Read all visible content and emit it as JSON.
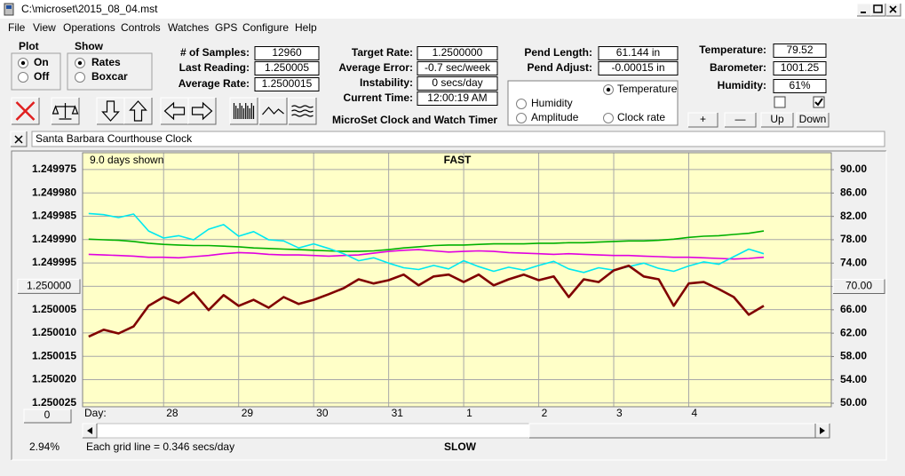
{
  "window": {
    "title": "C:\\microset\\2015_08_04.mst"
  },
  "menu": [
    "File",
    "View",
    "Operations",
    "Controls",
    "Watches",
    "GPS",
    "Configure",
    "Help"
  ],
  "plot_group": {
    "title": "Plot",
    "options": [
      "On",
      "Off"
    ],
    "selected": 0
  },
  "show_group": {
    "title": "Show",
    "options": [
      "Rates",
      "Boxcar"
    ],
    "selected": 0
  },
  "readouts": [
    {
      "label": "# of Samples:",
      "value": "12960"
    },
    {
      "label": "Last Reading:",
      "value": "1.250005"
    },
    {
      "label": "Average Rate:",
      "value": "1.2500015"
    },
    {
      "label": "Target Rate:",
      "value": "1.2500000"
    },
    {
      "label": "Average Error:",
      "value": "-0.7 sec/week"
    },
    {
      "label": "Instability:",
      "value": "0 secs/day"
    },
    {
      "label": "Current Time:",
      "value": "12:00:19 AM"
    },
    {
      "label": "Pend Length:",
      "value": "61.144 in"
    },
    {
      "label": "Pend Adjust:",
      "value": "-0.00015 in"
    },
    {
      "label": "Temperature:",
      "value": "79.52"
    },
    {
      "label": "Barometer:",
      "value": "1001.25"
    },
    {
      "label": "Humidity:",
      "value": "61%"
    }
  ],
  "app_title": "MicroSet Clock and Watch Timer",
  "sensor_select": {
    "options": [
      {
        "label": "Temperature",
        "color": "#00a000"
      },
      {
        "label": "Humidity",
        "color": "#d000d0"
      },
      {
        "label": "Amplitude",
        "color": "#00c8d8"
      },
      {
        "label": "Clock rate",
        "color": "#000000"
      }
    ],
    "selected": 0
  },
  "checkboxes": [
    false,
    true
  ],
  "buttons": [
    "+",
    "—",
    "Up",
    "Down"
  ],
  "description": "Santa Barbara Courthouse Clock",
  "chart_data": {
    "type": "line",
    "subtitle": "9.0 days shown",
    "top_label": "FAST",
    "bottom_label": "SLOW",
    "x_label": "Day:",
    "note": "Each grid line = 0.346 secs/day",
    "scale_percent": "2.94%",
    "offset_button": "0",
    "grid": true,
    "xlim": [
      -1.08,
      8.9
    ],
    "xticks": [
      {
        "value": 0,
        "label": "28"
      },
      {
        "value": 1,
        "label": "29"
      },
      {
        "value": 2,
        "label": "30"
      },
      {
        "value": 3,
        "label": "31"
      },
      {
        "value": 4,
        "label": "1"
      },
      {
        "value": 5,
        "label": "2"
      },
      {
        "value": 6,
        "label": "3"
      },
      {
        "value": 7,
        "label": "4"
      }
    ],
    "ylim": [
      1.2500258,
      1.2499714
    ],
    "yticks": [
      1.249975,
      {
        "value": 1.24998,
        "label": "1.249980"
      },
      1.249985,
      {
        "value": 1.24999,
        "label": "1.249990"
      },
      1.249995,
      {
        "value": 1.25,
        "label": "1.250000"
      },
      1.250005,
      {
        "value": 1.25001,
        "label": "1.250010"
      },
      1.250015,
      {
        "value": 1.25002,
        "label": "1.250020"
      },
      1.250025
    ],
    "y2lim": [
      49.4,
      92.9
    ],
    "y2ticks": [
      {
        "value": 90,
        "label": "90.00"
      },
      {
        "value": 86,
        "label": "86.00"
      },
      {
        "value": 82,
        "label": "82.00"
      },
      {
        "value": 78,
        "label": "78.00"
      },
      {
        "value": 74,
        "label": "74.00"
      },
      {
        "value": 70,
        "label": "70.00"
      },
      {
        "value": 66,
        "label": "66.00"
      },
      {
        "value": 62,
        "label": "62.00"
      },
      {
        "value": 58,
        "label": "58.00"
      },
      {
        "value": 54,
        "label": "54.00"
      },
      {
        "value": 50,
        "label": "50.00"
      }
    ],
    "x": [
      -1,
      -0.8,
      -0.6,
      -0.4,
      -0.2,
      0,
      0.2,
      0.4,
      0.6,
      0.8,
      1,
      1.2,
      1.4,
      1.6,
      1.8,
      2,
      2.2,
      2.4,
      2.6,
      2.8,
      3,
      3.2,
      3.4,
      3.6,
      3.8,
      4,
      4.2,
      4.4,
      4.6,
      4.8,
      5,
      5.2,
      5.4,
      5.6,
      5.8,
      6,
      6.2,
      6.4,
      6.6,
      6.8,
      7,
      7.2,
      7.4,
      7.6,
      7.8,
      8
    ],
    "series": [
      {
        "name": "Temperature",
        "color": "#00b000",
        "axis": "y2",
        "values": [
          78.1,
          78.0,
          77.9,
          77.7,
          77.4,
          77.2,
          77.1,
          77.0,
          77.0,
          76.9,
          76.8,
          76.6,
          76.5,
          76.4,
          76.3,
          76.2,
          76.1,
          76.0,
          76.0,
          76.1,
          76.3,
          76.6,
          76.8,
          77.0,
          77.1,
          77.1,
          77.2,
          77.3,
          77.3,
          77.3,
          77.4,
          77.4,
          77.5,
          77.5,
          77.6,
          77.7,
          77.8,
          77.8,
          77.9,
          78.1,
          78.4,
          78.6,
          78.7,
          78.9,
          79.1,
          79.5
        ]
      },
      {
        "name": "Humidity",
        "color": "#e000e0",
        "axis": "y2",
        "values": [
          75.5,
          75.4,
          75.3,
          75.2,
          75.0,
          75.0,
          74.9,
          75.1,
          75.3,
          75.6,
          75.8,
          75.7,
          75.5,
          75.4,
          75.4,
          75.3,
          75.2,
          75.3,
          75.4,
          75.7,
          76.0,
          76.2,
          76.3,
          76.1,
          75.9,
          76.0,
          76.1,
          76.0,
          75.8,
          75.7,
          75.6,
          75.5,
          75.6,
          75.5,
          75.4,
          75.3,
          75.3,
          75.2,
          75.1,
          75.0,
          75.0,
          74.9,
          74.8,
          74.7,
          74.8,
          75.0
        ]
      },
      {
        "name": "Amplitude",
        "color": "#00e8f0",
        "axis": "y2",
        "values": [
          82.5,
          82.3,
          81.8,
          82.4,
          79.5,
          78.3,
          78.7,
          78.0,
          79.8,
          80.6,
          78.6,
          79.4,
          78.0,
          77.8,
          76.6,
          77.3,
          76.5,
          75.6,
          74.4,
          74.9,
          74.0,
          73.2,
          72.9,
          73.6,
          73.0,
          74.4,
          73.4,
          72.6,
          73.3,
          72.8,
          73.6,
          74.3,
          73.0,
          72.4,
          73.2,
          72.8,
          73.4,
          74.0,
          73.1,
          72.6,
          73.5,
          74.2,
          73.8,
          75.1,
          76.4,
          75.6
        ]
      },
      {
        "name": "Clock rate",
        "color": "#800000",
        "values": [
          1.2500108,
          1.2500093,
          1.2500101,
          1.2500086,
          1.2500042,
          1.2500023,
          1.2500036,
          1.2500013,
          1.2500051,
          1.2500019,
          1.2500042,
          1.2500029,
          1.2500046,
          1.2500023,
          1.2500038,
          1.2500029,
          1.2500017,
          1.2500004,
          1.2499985,
          1.2499994,
          1.2499987,
          1.2499975,
          1.2499998,
          1.2499979,
          1.2499975,
          1.2499991,
          1.2499975,
          1.2499998,
          1.2499985,
          1.2499975,
          1.2499987,
          1.2499979,
          1.2500023,
          1.2499985,
          1.2499991,
          1.2499966,
          1.2499956,
          1.2499979,
          1.2499985,
          1.2500042,
          1.2499994,
          1.2499991,
          1.2500006,
          1.2500023,
          1.2500061,
          1.2500042
        ]
      }
    ]
  }
}
